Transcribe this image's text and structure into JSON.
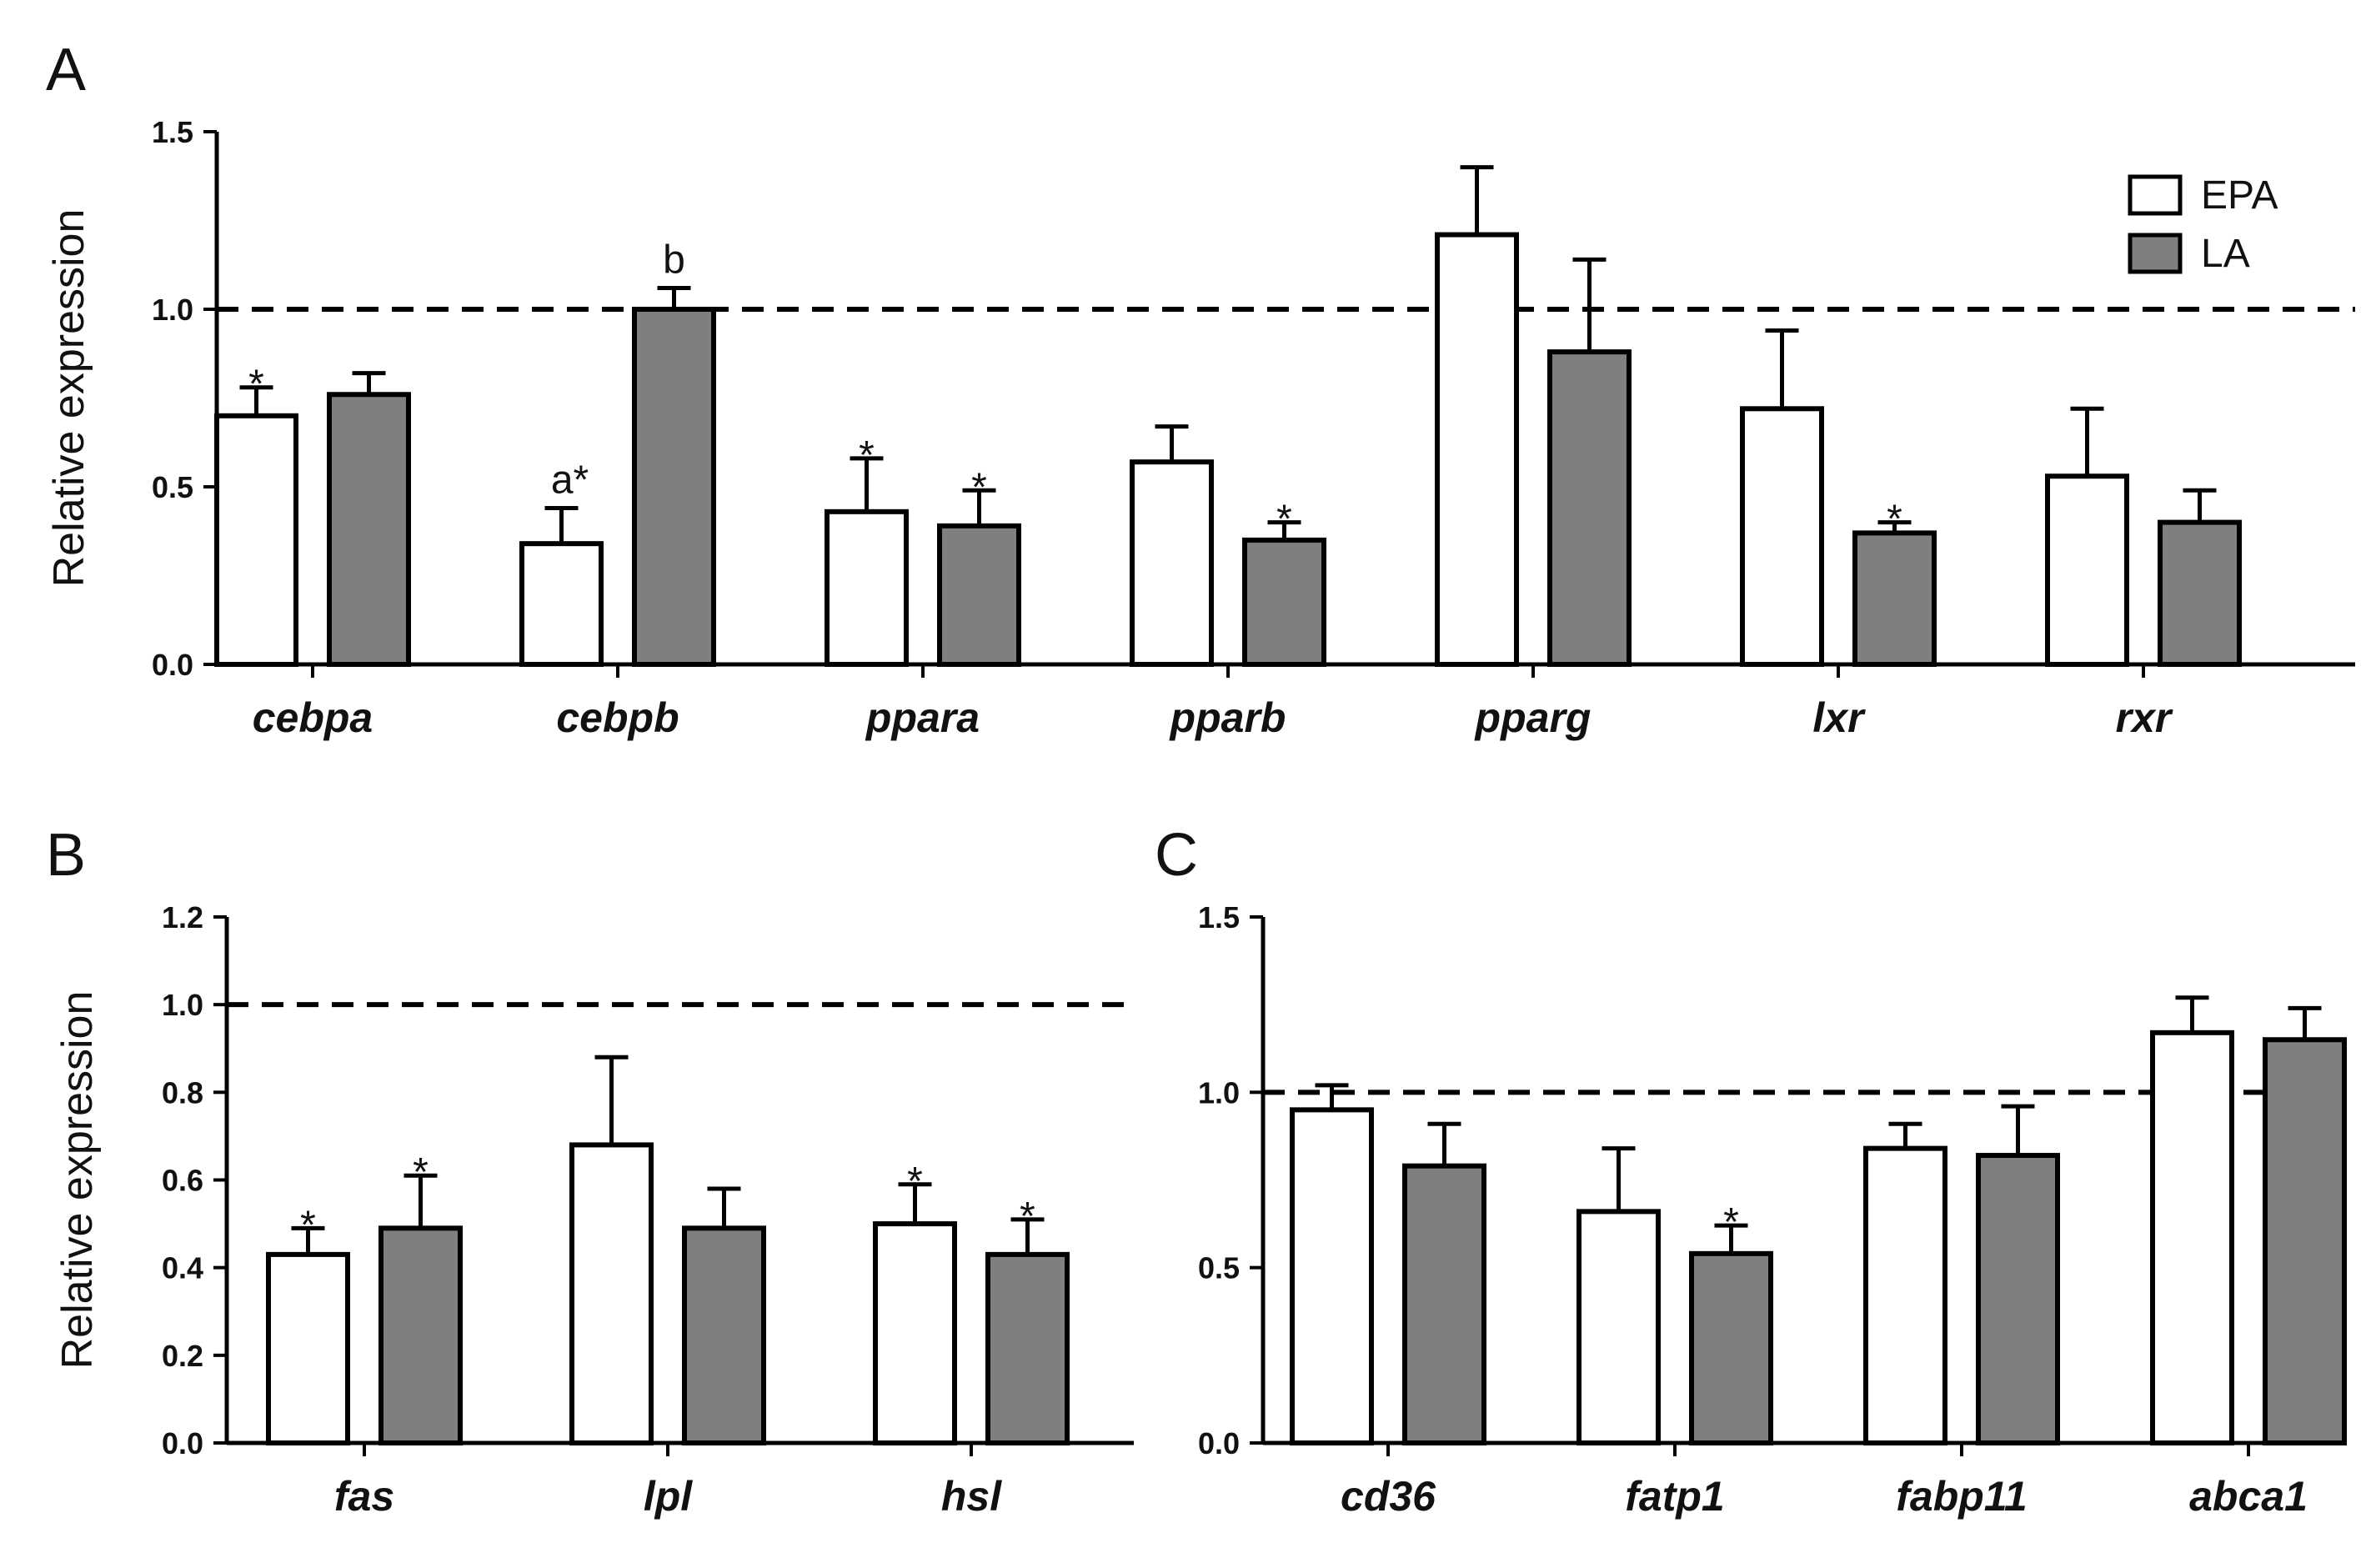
{
  "colors": {
    "EPA": "#ffffff",
    "LA": "#7f7f7f",
    "stroke": "#000000"
  },
  "legend": [
    {
      "name": "EPA",
      "color": "#ffffff"
    },
    {
      "name": "LA",
      "color": "#7f7f7f"
    }
  ],
  "chart_data": [
    {
      "panel": "A",
      "type": "bar",
      "ylabel": "Relative expression",
      "ylim": [
        0,
        1.5
      ],
      "yticks": [
        "0.0",
        "0.5",
        "1.0",
        "1.5"
      ],
      "reference_line": 1.0,
      "legend_position": "top-right",
      "categories": [
        "cebpa",
        "cebpb",
        "ppara",
        "pparb",
        "pparg",
        "lxr",
        "rxr"
      ],
      "series": [
        {
          "name": "EPA",
          "values": [
            0.7,
            0.34,
            0.43,
            0.57,
            1.21,
            0.72,
            0.53
          ],
          "errors": [
            0.08,
            0.1,
            0.15,
            0.1,
            0.19,
            0.22,
            0.19
          ],
          "annotations": [
            "*",
            "a*",
            "*",
            "",
            "",
            "",
            ""
          ]
        },
        {
          "name": "LA",
          "values": [
            0.76,
            1.0,
            0.39,
            0.35,
            0.88,
            0.37,
            0.4
          ],
          "errors": [
            0.06,
            0.06,
            0.1,
            0.05,
            0.26,
            0.03,
            0.09
          ],
          "annotations": [
            "",
            "b",
            "*",
            "*",
            "",
            "*",
            ""
          ]
        }
      ]
    },
    {
      "panel": "B",
      "type": "bar",
      "ylabel": "Relative expression",
      "ylim": [
        0,
        1.2
      ],
      "yticks": [
        "0.0",
        "0.2",
        "0.4",
        "0.6",
        "0.8",
        "1.0",
        "1.2"
      ],
      "reference_line": 1.0,
      "categories": [
        "fas",
        "lpl",
        "hsl"
      ],
      "series": [
        {
          "name": "EPA",
          "values": [
            0.43,
            0.68,
            0.5
          ],
          "errors": [
            0.06,
            0.2,
            0.09
          ],
          "annotations": [
            "*",
            "",
            "*"
          ]
        },
        {
          "name": "LA",
          "values": [
            0.49,
            0.49,
            0.43
          ],
          "errors": [
            0.12,
            0.09,
            0.08
          ],
          "annotations": [
            "*",
            "",
            "*"
          ]
        }
      ]
    },
    {
      "panel": "C",
      "type": "bar",
      "ylabel": "",
      "ylim": [
        0,
        1.5
      ],
      "yticks": [
        "0.0",
        "0.5",
        "1.0",
        "1.5"
      ],
      "reference_line": 1.0,
      "categories": [
        "cd36",
        "fatp1",
        "fabp11",
        "abca1"
      ],
      "series": [
        {
          "name": "EPA",
          "values": [
            0.95,
            0.66,
            0.84,
            1.17
          ],
          "errors": [
            0.07,
            0.18,
            0.07,
            0.1
          ],
          "annotations": [
            "",
            "",
            "",
            ""
          ]
        },
        {
          "name": "LA",
          "values": [
            0.79,
            0.54,
            0.82,
            1.15
          ],
          "errors": [
            0.12,
            0.08,
            0.14,
            0.09
          ],
          "annotations": [
            "",
            "*",
            "",
            ""
          ]
        }
      ]
    }
  ]
}
